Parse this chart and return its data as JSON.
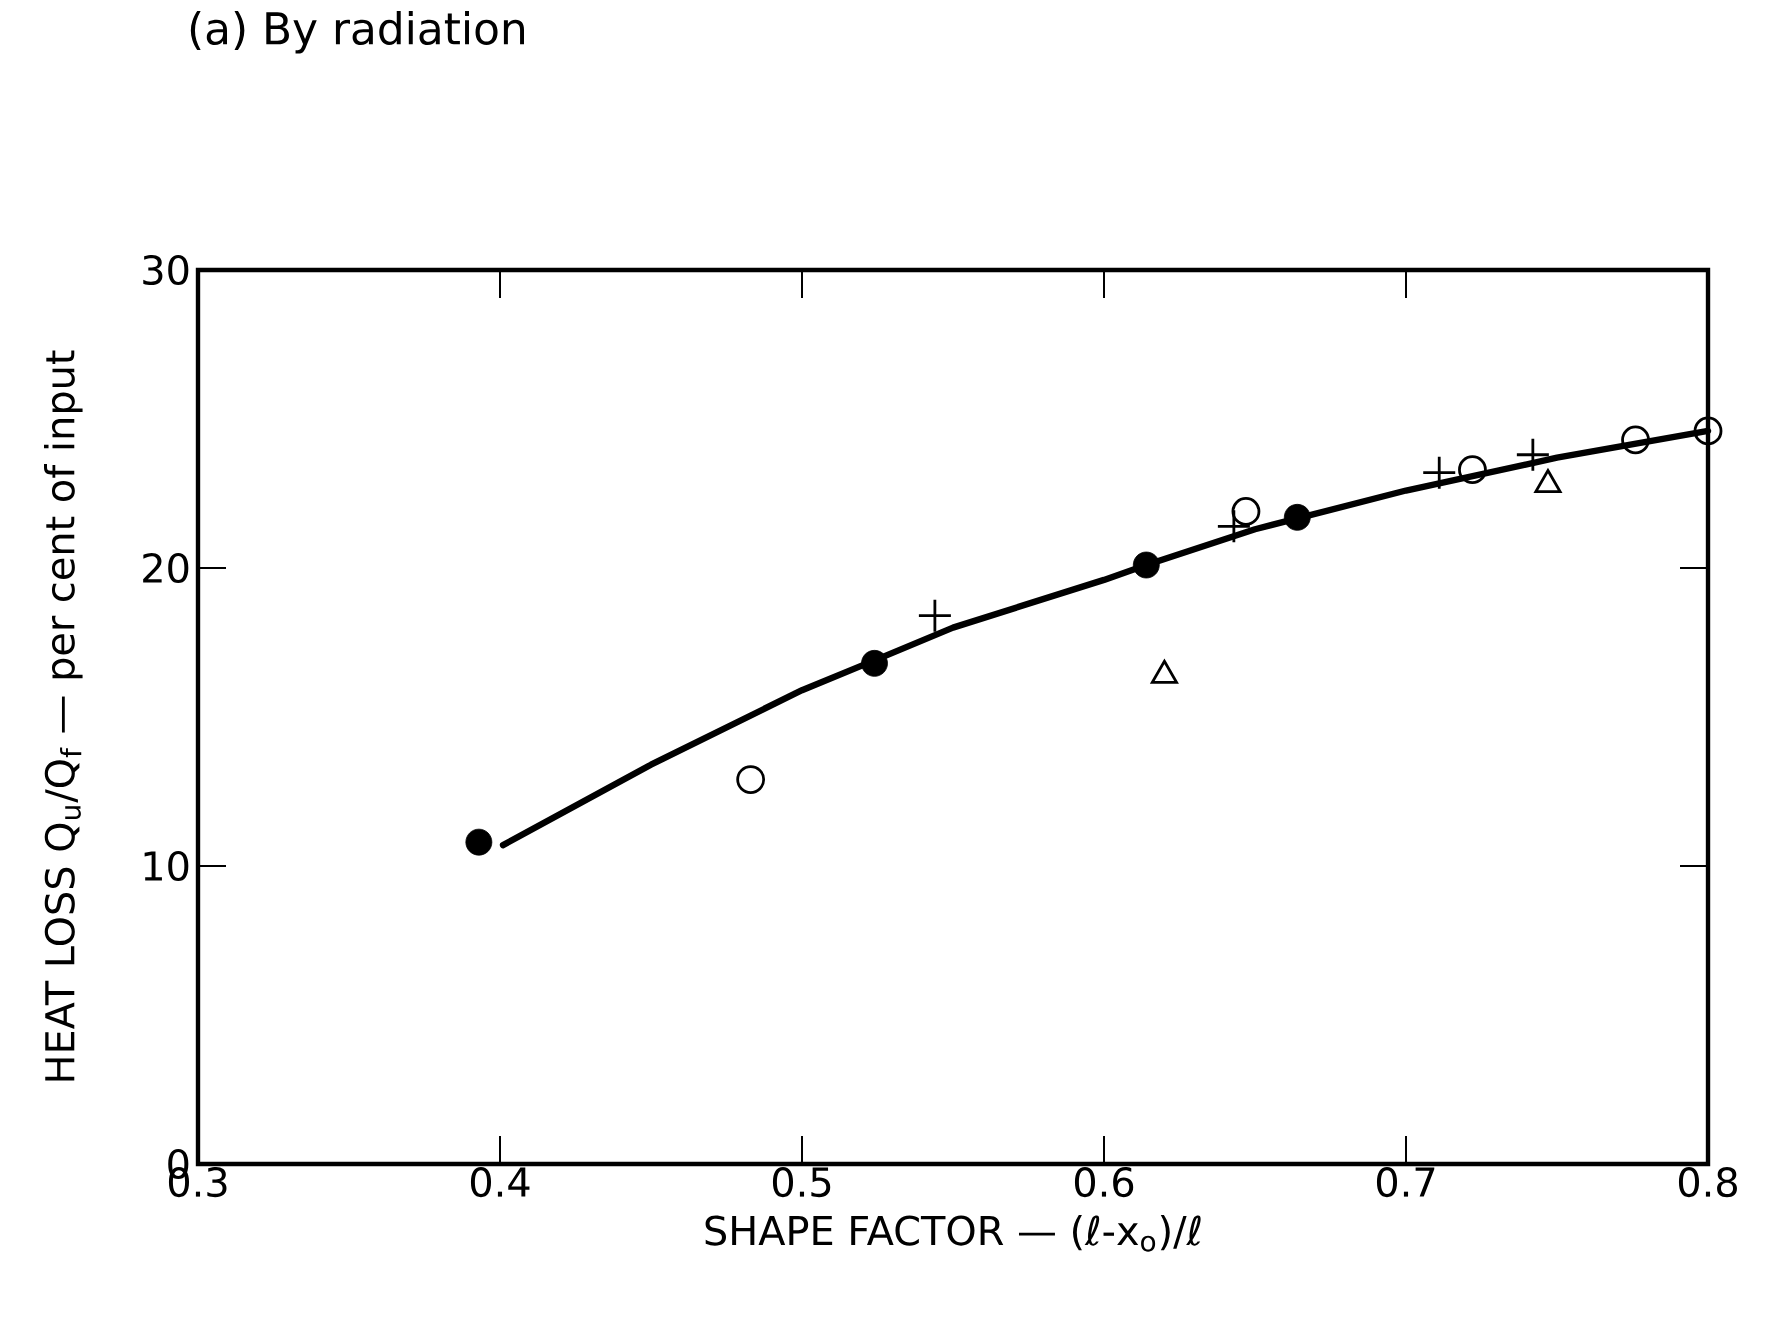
{
  "chart_data": {
    "type": "scatter",
    "title": "(a) By radiation",
    "xlabel": "SHAPE FACTOR — (ℓ-x$_{o}$)/ℓ",
    "ylabel": "HEAT LOSS Q$_{u}$/Q$_{f}$ — per cent of input",
    "xlim": [
      0.3,
      0.8
    ],
    "ylim": [
      0,
      30
    ],
    "xticks": [
      0.3,
      0.4,
      0.5,
      0.6,
      0.7,
      0.8
    ],
    "yticks": [
      0,
      10,
      20,
      30
    ],
    "grid": false,
    "series": [
      {
        "marker": "filled circle",
        "color": "#000000",
        "x": [
          0.393,
          0.524,
          0.614,
          0.664
        ],
        "values": [
          10.8,
          16.8,
          20.1,
          21.7
        ]
      },
      {
        "marker": "circle",
        "color": "#000000",
        "x": [
          0.483,
          0.647,
          0.722,
          0.776,
          0.8
        ],
        "values": [
          12.9,
          21.9,
          23.3,
          24.3,
          24.6
        ]
      },
      {
        "marker": "cross",
        "color": "#000000",
        "x": [
          0.544,
          0.643,
          0.711,
          0.742
        ],
        "values": [
          18.4,
          21.4,
          23.2,
          23.8
        ]
      },
      {
        "marker": "triangle",
        "color": "#000000",
        "x": [
          0.62,
          0.747
        ],
        "values": [
          16.4,
          22.8
        ]
      },
      {
        "type": "line",
        "marker": "none",
        "color": "#000000",
        "x": [
          0.401,
          0.45,
          0.5,
          0.524,
          0.55,
          0.6,
          0.614,
          0.65,
          0.7,
          0.75,
          0.8
        ],
        "values": [
          10.7,
          13.4,
          15.9,
          16.9,
          18.0,
          19.6,
          20.1,
          21.3,
          22.6,
          23.7,
          24.6
        ]
      }
    ]
  }
}
